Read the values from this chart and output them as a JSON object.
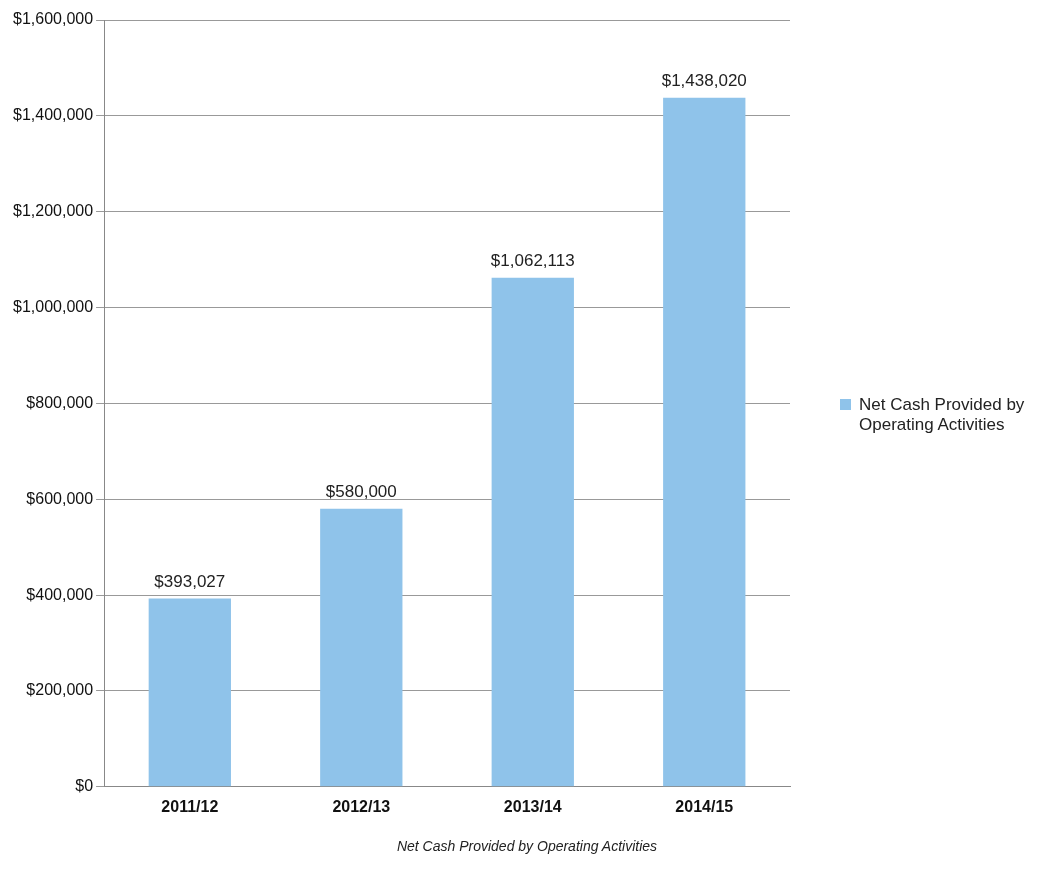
{
  "chart_data": {
    "type": "bar",
    "categories": [
      "2011/12",
      "2012/13",
      "2013/14",
      "2014/15"
    ],
    "series": [
      {
        "name": "Net Cash Provided by Operating Activities",
        "color": "#8fc3ea",
        "values": [
          393027,
          580000,
          1062113,
          1438020
        ],
        "value_labels": [
          "$393,027",
          "$580,000",
          "$1,062,113",
          "$1,438,020"
        ]
      }
    ],
    "ylim": [
      0,
      1600000
    ],
    "yticks": [
      {
        "value": 0,
        "label": "$0"
      },
      {
        "value": 200000,
        "label": "$200,000"
      },
      {
        "value": 400000,
        "label": "$400,000"
      },
      {
        "value": 600000,
        "label": "$600,000"
      },
      {
        "value": 800000,
        "label": "$800,000"
      },
      {
        "value": 1000000,
        "label": "$1,000,000"
      },
      {
        "value": 1200000,
        "label": "$1,200,000"
      },
      {
        "value": 1400000,
        "label": "$1,400,000"
      },
      {
        "value": 1600000,
        "label": "$1,600,000"
      }
    ],
    "grid": "y",
    "legend": "right",
    "annotations": [
      "Net Cash Provided by Operating Activities"
    ]
  }
}
